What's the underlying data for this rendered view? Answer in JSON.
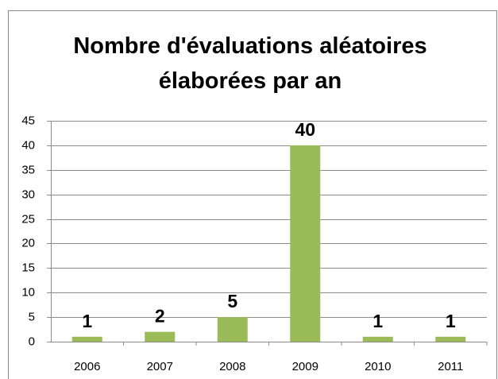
{
  "chart_data": {
    "type": "bar",
    "title": "Nombre d'évaluations aléatoires élaborées par an",
    "categories": [
      "2006",
      "2007",
      "2008",
      "2009",
      "2010",
      "2011"
    ],
    "values": [
      1,
      2,
      5,
      40,
      1,
      1
    ],
    "color": "#9bbb59",
    "ylim": [
      0,
      45
    ],
    "yticks": [
      0,
      5,
      10,
      15,
      20,
      25,
      30,
      35,
      40,
      45
    ],
    "grid": true
  }
}
